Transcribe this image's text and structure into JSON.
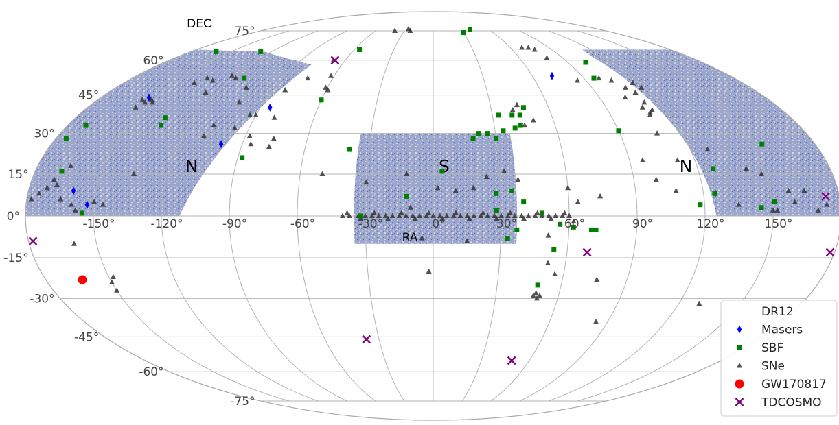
{
  "chart_data": {
    "type": "scatter",
    "projection": "mollweide",
    "xlabel": "RA",
    "ylabel": "DEC",
    "ra_ticks": [
      "-150°",
      "-120°",
      "-90°",
      "-60°",
      "-30°",
      "0°",
      "30°",
      "60°",
      "90°",
      "120°",
      "150°"
    ],
    "ra_tick_values": [
      -150,
      -120,
      -90,
      -60,
      -30,
      0,
      30,
      60,
      90,
      120,
      150
    ],
    "dec_ticks": [
      "75°",
      "60°",
      "45°",
      "30°",
      "15°",
      "0°",
      "-15°",
      "-30°",
      "-45°",
      "-60°",
      "-75°"
    ],
    "dec_tick_values": [
      75,
      60,
      45,
      30,
      15,
      0,
      -15,
      -30,
      -45,
      -60,
      -75
    ],
    "grid": true,
    "legend_position": "lower-right",
    "region_labels": [
      {
        "text": "N",
        "ra": -110,
        "dec": 18
      },
      {
        "text": "S",
        "ra": 5,
        "dec": 18
      },
      {
        "text": "N",
        "ra": 115,
        "dec": 18
      }
    ],
    "footprint": {
      "name": "DR12",
      "color": "#5a6fb8",
      "patches": [
        {
          "region": "north-west",
          "corners": [
            [
              -180,
              0
            ],
            [
              -112,
              0
            ],
            [
              -80,
              58
            ],
            [
              -125,
              64
            ],
            [
              -180,
              65
            ]
          ]
        },
        {
          "region": "south",
          "ra_range": [
            -35,
            37
          ],
          "dec_range": [
            -10,
            30
          ]
        },
        {
          "region": "north-east",
          "corners": [
            [
              113,
              65
            ],
            [
              180,
              65
            ],
            [
              180,
              0
            ],
            [
              125,
              0
            ],
            [
              112,
              62
            ]
          ]
        }
      ]
    },
    "series": [
      {
        "name": "Masers",
        "marker": "diamond",
        "color": "#0000ee",
        "points": [
          [
            -154,
            44
          ],
          [
            -160,
            9
          ],
          [
            -153,
            4
          ],
          [
            -85,
            40
          ],
          [
            -100,
            26
          ],
          [
            72,
            53
          ]
        ]
      },
      {
        "name": "SBF",
        "marker": "square",
        "color": "#008000",
        "points": [
          [
            -161,
            64
          ],
          [
            -128,
            64
          ],
          [
            -113,
            52
          ],
          [
            -56,
            65
          ],
          [
            -60,
            43
          ],
          [
            -135,
            36
          ],
          [
            -134,
            33
          ],
          [
            -171,
            33
          ],
          [
            -175,
            28
          ],
          [
            -168,
            16
          ],
          [
            -155,
            1
          ],
          [
            -88,
            21
          ],
          [
            -39,
            24
          ],
          [
            -32,
            0
          ],
          [
            -12,
            7
          ],
          [
            4,
            16
          ],
          [
            19,
            28
          ],
          [
            22,
            30
          ],
          [
            26,
            30
          ],
          [
            30,
            28
          ],
          [
            34,
            31
          ],
          [
            33,
            37
          ],
          [
            40,
            37
          ],
          [
            44,
            37
          ],
          [
            40,
            32
          ],
          [
            43,
            33
          ],
          [
            47,
            40
          ],
          [
            35,
            9
          ],
          [
            40,
            5
          ],
          [
            28,
            8
          ],
          [
            28,
            2
          ],
          [
            33,
            -8
          ],
          [
            48,
            1
          ],
          [
            56,
            -3
          ],
          [
            37,
            -5
          ],
          [
            54,
            -12
          ],
          [
            62,
            -4
          ],
          [
            70,
            -5
          ],
          [
            72,
            -5
          ],
          [
            49,
            -25
          ],
          [
            90,
            31
          ],
          [
            96,
            52
          ],
          [
            102,
            59
          ],
          [
            127,
            17
          ],
          [
            145,
            3
          ],
          [
            151,
            5
          ],
          [
            155,
            26
          ],
          [
            125,
            8
          ],
          [
            118,
            4
          ],
          [
            30,
            74
          ],
          [
            40,
            76
          ]
        ]
      },
      {
        "name": "SNe",
        "marker": "triangle",
        "color": "#333333",
        "points": [
          [
            -40,
            0
          ],
          [
            -37,
            0
          ],
          [
            -33,
            0
          ],
          [
            -30,
            0
          ],
          [
            -27,
            0
          ],
          [
            -24,
            0
          ],
          [
            -21,
            0
          ],
          [
            -18,
            0
          ],
          [
            -15,
            0
          ],
          [
            -12,
            0
          ],
          [
            -9,
            0
          ],
          [
            -6,
            0
          ],
          [
            -3,
            0
          ],
          [
            0,
            0
          ],
          [
            3,
            0
          ],
          [
            6,
            0
          ],
          [
            9,
            0
          ],
          [
            12,
            0
          ],
          [
            15,
            0
          ],
          [
            18,
            0
          ],
          [
            21,
            0
          ],
          [
            24,
            0
          ],
          [
            27,
            0
          ],
          [
            30,
            0
          ],
          [
            33,
            0
          ],
          [
            36,
            0
          ],
          [
            39,
            0
          ],
          [
            42,
            0
          ],
          [
            45,
            0
          ],
          [
            48,
            0
          ],
          [
            51,
            0
          ],
          [
            54,
            0
          ],
          [
            57,
            0
          ],
          [
            60,
            0
          ],
          [
            -38,
            1
          ],
          [
            -32,
            -1
          ],
          [
            -26,
            1
          ],
          [
            -20,
            -1
          ],
          [
            -14,
            1
          ],
          [
            -8,
            -1
          ],
          [
            -2,
            1
          ],
          [
            4,
            -1
          ],
          [
            10,
            1
          ],
          [
            16,
            -1
          ],
          [
            22,
            1
          ],
          [
            28,
            -1
          ],
          [
            34,
            1
          ],
          [
            40,
            -1
          ],
          [
            46,
            1
          ],
          [
            52,
            -1
          ],
          [
            58,
            1
          ],
          [
            -153,
            42
          ],
          [
            -151,
            43
          ],
          [
            -149,
            42
          ],
          [
            -155,
            40
          ],
          [
            -156,
            43
          ],
          [
            -139,
            50
          ],
          [
            -135,
            52
          ],
          [
            -130,
            51
          ],
          [
            -122,
            53
          ],
          [
            -118,
            52
          ],
          [
            -126,
            46
          ],
          [
            -106,
            48
          ],
          [
            -93,
            37
          ],
          [
            -90,
            37
          ],
          [
            -103,
            42
          ],
          [
            -97,
            32
          ],
          [
            -108,
            33
          ],
          [
            -110,
            29
          ],
          [
            -80,
            36
          ],
          [
            -76,
            28
          ],
          [
            -77,
            25
          ],
          [
            -86,
            26
          ],
          [
            -88,
            29
          ],
          [
            -83,
            47
          ],
          [
            -75,
            52
          ],
          [
            -68,
            60
          ],
          [
            -62,
            53
          ],
          [
            -61,
            48
          ],
          [
            -59,
            47
          ],
          [
            -165,
            18
          ],
          [
            -170,
            13
          ],
          [
            -172,
            10
          ],
          [
            -168,
            11
          ],
          [
            -175,
            8
          ],
          [
            -178,
            6
          ],
          [
            -165,
            6
          ],
          [
            -160,
            4
          ],
          [
            -158,
            2
          ],
          [
            -150,
            5
          ],
          [
            -146,
            4
          ],
          [
            -135,
            15
          ],
          [
            -160,
            -10
          ],
          [
            -150,
            -24
          ],
          [
            -148,
            -22
          ],
          [
            -150,
            -27
          ],
          [
            -40,
            75
          ],
          [
            -27,
            76
          ],
          [
            -24,
            75
          ],
          [
            -50,
            15
          ],
          [
            -30,
            12
          ],
          [
            -12,
            15
          ],
          [
            2,
            10
          ],
          [
            10,
            9
          ],
          [
            18,
            10
          ],
          [
            24,
            14
          ],
          [
            32,
            16
          ],
          [
            38,
            13
          ],
          [
            -10,
            3
          ],
          [
            -5,
            -8
          ],
          [
            15,
            -9
          ],
          [
            45,
            33
          ],
          [
            50,
            35
          ],
          [
            41,
            39
          ],
          [
            44,
            41
          ],
          [
            62,
            -2
          ],
          [
            64,
            5
          ],
          [
            60,
            10
          ],
          [
            51,
            -7
          ],
          [
            56,
            -21
          ],
          [
            52,
            -17
          ],
          [
            48,
            -29
          ],
          [
            49,
            -28
          ],
          [
            50,
            -30
          ],
          [
            51,
            -29
          ],
          [
            -2,
            -20
          ],
          [
            69,
            66
          ],
          [
            74,
            66
          ],
          [
            77,
            65
          ],
          [
            79,
            61
          ],
          [
            85,
            51
          ],
          [
            99,
            52
          ],
          [
            105,
            51
          ],
          [
            109,
            48
          ],
          [
            112,
            46
          ],
          [
            116,
            50
          ],
          [
            118,
            48
          ],
          [
            104,
            44
          ],
          [
            109,
            40
          ],
          [
            112,
            42
          ],
          [
            110,
            37
          ],
          [
            113,
            39
          ],
          [
            111,
            38
          ],
          [
            108,
            30
          ],
          [
            96,
            20
          ],
          [
            112,
            20
          ],
          [
            128,
            24
          ],
          [
            142,
            17
          ],
          [
            148,
            15
          ],
          [
            160,
            5
          ],
          [
            165,
            9
          ],
          [
            170,
            2
          ],
          [
            174,
            4
          ],
          [
            135,
            4
          ],
          [
            100,
            13
          ],
          [
            108,
            9
          ],
          [
            74,
            7
          ],
          [
            76,
            -23
          ],
          [
            84,
            -39
          ],
          [
            130,
            -32
          ],
          [
            150,
            2
          ],
          [
            152,
            2
          ],
          [
            158,
            9
          ]
        ]
      },
      {
        "name": "GW170817",
        "marker": "circle",
        "color": "#ff0000",
        "points": [
          [
            -163,
            -23
          ]
        ]
      },
      {
        "name": "TDCOSMO",
        "marker": "x",
        "color": "#800080",
        "points": [
          [
            -67,
            60
          ],
          [
            -178,
            -9
          ],
          [
            -37,
            -46
          ],
          [
            49,
            -55
          ],
          [
            69,
            -13
          ],
          [
            178,
            -13
          ],
          [
            174,
            7
          ]
        ]
      }
    ],
    "legend": [
      "DR12",
      "Masers",
      "SBF",
      "SNe",
      "GW170817",
      "TDCOSMO"
    ]
  }
}
